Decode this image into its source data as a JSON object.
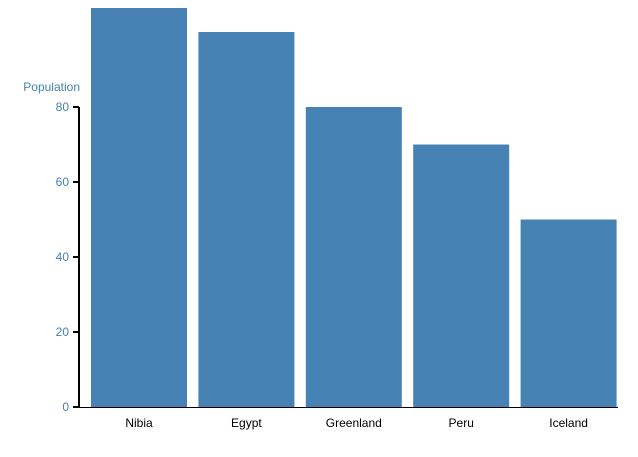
{
  "chart_data": {
    "type": "bar",
    "categories": [
      "Nibia",
      "Egypt",
      "Greenland",
      "Peru",
      "Iceland"
    ],
    "values": [
      107,
      100,
      80,
      70,
      50
    ],
    "ylabel": "Population",
    "ylim": [
      0,
      107
    ],
    "yticks": [
      "0",
      "20",
      "40",
      "60",
      "80"
    ],
    "grid": false,
    "colors": {
      "bar": "#4682b4",
      "axis_text": "#4682b4",
      "axis_line": "#000000",
      "category_text": "#000000"
    }
  }
}
